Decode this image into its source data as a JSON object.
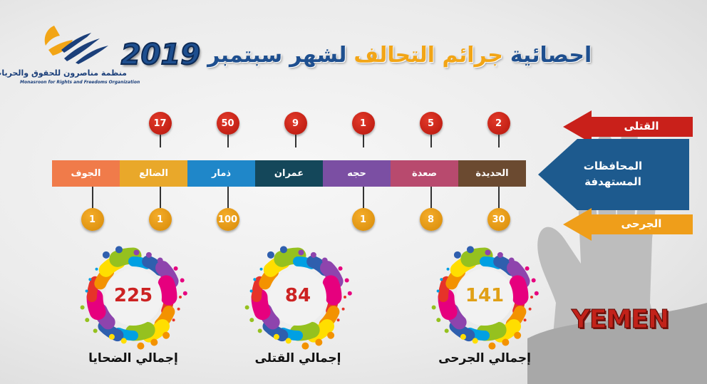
{
  "organization": {
    "name_ar": "منظمة مناصرون للحقوق والحريات",
    "name_en": "Monasroon for Rights and Freedoms Organization"
  },
  "title": {
    "part1": "احصائية",
    "part2": "جرائم التحالف",
    "part3": "لشهر",
    "part4": "سبتمبر",
    "year": "2019"
  },
  "legend": {
    "killed": "القتلى",
    "governorates_line1": "المحافظات",
    "governorates_line2": "المستهدفة",
    "injured": "الجرحى"
  },
  "colors": {
    "killed": "#c9201a",
    "injured": "#ef9e1a",
    "governorates": "#1d5a8e"
  },
  "governorates": [
    {
      "name": "الحديدة",
      "color": "#6b4a30",
      "killed": "2",
      "injured": "30"
    },
    {
      "name": "صعدة",
      "color": "#b84a6e",
      "killed": "5",
      "injured": "8"
    },
    {
      "name": "حجه",
      "color": "#7b4fa3",
      "killed": "1",
      "injured": "1"
    },
    {
      "name": "عمران",
      "color": "#14475a",
      "killed": "9",
      "injured": ""
    },
    {
      "name": "ذمار",
      "color": "#1f87c9",
      "killed": "50",
      "injured": "100"
    },
    {
      "name": "الضالع",
      "color": "#e9a82a",
      "killed": "17",
      "injured": "1"
    },
    {
      "name": "الجوف",
      "color": "#f07b4a",
      "killed": "",
      "injured": "1"
    }
  ],
  "totals": [
    {
      "label": "إجمالي الجرحى",
      "value": "141",
      "color": "#e0a016"
    },
    {
      "label": "إجمالي القتلى",
      "value": "84",
      "color": "#cc2222"
    },
    {
      "label": "إجمالي الضحايا",
      "value": "225",
      "color": "#cc2222"
    }
  ],
  "country": "YEMEN"
}
